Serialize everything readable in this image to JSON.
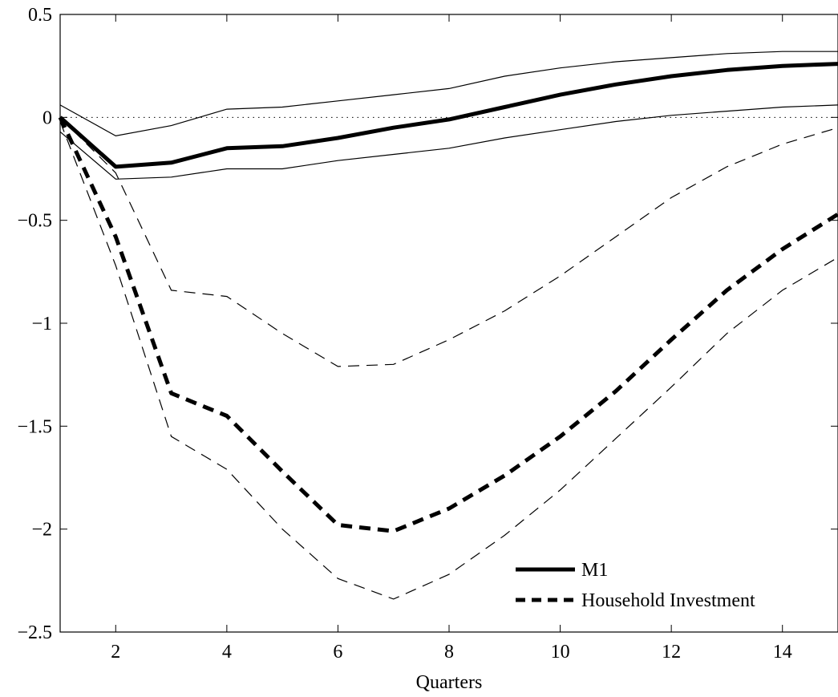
{
  "chart_data": {
    "type": "line",
    "title": "",
    "xlabel": "Quarters",
    "ylabel": "",
    "xlim": [
      1,
      15
    ],
    "ylim": [
      -2.5,
      0.5
    ],
    "xticks": [
      2,
      4,
      6,
      8,
      10,
      12,
      14
    ],
    "xtick_labels": [
      "2",
      "4",
      "6",
      "8",
      "10",
      "12",
      "14"
    ],
    "yticks": [
      0.5,
      0,
      -0.5,
      -1,
      -1.5,
      -2,
      -2.5
    ],
    "ytick_labels": [
      "0.5",
      "0",
      "−0.5",
      "−1",
      "−1.5",
      "−2",
      "−2.5"
    ],
    "grid": false,
    "zero_line": true,
    "legend_position": "bottom-right",
    "x": [
      1,
      2,
      3,
      4,
      5,
      6,
      7,
      8,
      9,
      10,
      11,
      12,
      13,
      14,
      15
    ],
    "series": [
      {
        "name": "M1",
        "style": "solid",
        "values": [
          0.0,
          -0.24,
          -0.22,
          -0.15,
          -0.14,
          -0.1,
          -0.05,
          -0.01,
          0.05,
          0.11,
          0.16,
          0.2,
          0.23,
          0.25,
          0.26
        ],
        "lower": [
          -0.07,
          -0.3,
          -0.29,
          -0.25,
          -0.25,
          -0.21,
          -0.18,
          -0.15,
          -0.1,
          -0.06,
          -0.02,
          0.01,
          0.03,
          0.05,
          0.06
        ],
        "upper": [
          0.06,
          -0.09,
          -0.04,
          0.04,
          0.05,
          0.08,
          0.11,
          0.14,
          0.2,
          0.24,
          0.27,
          0.29,
          0.31,
          0.32,
          0.32
        ]
      },
      {
        "name": "Household Investment",
        "style": "dashed",
        "values": [
          0.0,
          -0.58,
          -1.34,
          -1.45,
          -1.72,
          -1.98,
          -2.01,
          -1.9,
          -1.74,
          -1.55,
          -1.33,
          -1.08,
          -0.84,
          -0.64,
          -0.47
        ],
        "lower": [
          -0.02,
          -0.72,
          -1.55,
          -1.71,
          -2.0,
          -2.24,
          -2.34,
          -2.22,
          -2.03,
          -1.81,
          -1.56,
          -1.31,
          -1.05,
          -0.84,
          -0.68
        ],
        "upper": [
          0.0,
          -0.27,
          -0.84,
          -0.87,
          -1.05,
          -1.21,
          -1.2,
          -1.08,
          -0.94,
          -0.77,
          -0.58,
          -0.39,
          -0.24,
          -0.13,
          -0.05
        ]
      }
    ]
  }
}
